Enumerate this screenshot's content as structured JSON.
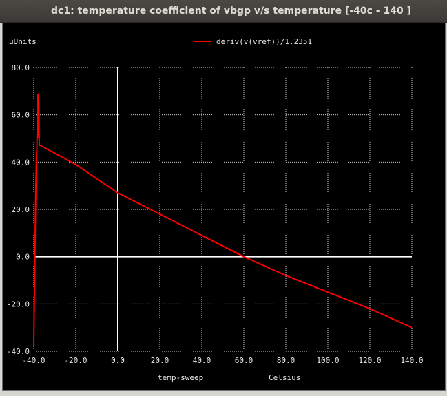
{
  "window": {
    "title": "dc1: temperature coefficient of vbgp v/s temperature [-40c - 140 ]"
  },
  "colors": {
    "background": "#000000",
    "grid": "#cfcfcf",
    "axis": "#ffffff",
    "trace": "#ff0000",
    "text": "#e8e8e8"
  },
  "chart_data": {
    "type": "line",
    "title": "",
    "ylabel": "uUnits",
    "xlabel": "temp-sweep",
    "xunit": "Celsius",
    "xlim": [
      -40,
      140
    ],
    "ylim": [
      -40,
      80
    ],
    "xticks": [
      -40,
      -20,
      0,
      20,
      40,
      60,
      80,
      100,
      120,
      140
    ],
    "yticks": [
      -40,
      -20,
      0,
      20,
      40,
      60,
      80
    ],
    "xtick_labels": [
      "-40.0",
      "-20.0",
      "0.0",
      "20.0",
      "40.0",
      "60.0",
      "80.0",
      "100.0",
      "120.0",
      "140.0"
    ],
    "ytick_labels": [
      "-40.0",
      "-20.0",
      "0.0",
      "20.0",
      "40.0",
      "60.0",
      "80.0"
    ],
    "grid": true,
    "legend_position": "top-center",
    "series": [
      {
        "name": "deriv(v(vref))/1.2351",
        "color": "#ff0000",
        "x": [
          -40,
          -39.6,
          -39.3,
          -39.0,
          -38.7,
          -38.5,
          -38.3,
          -38.0,
          -37.9,
          -37.6,
          -37.4,
          -37.2,
          -37.0,
          -36.8,
          -20,
          0,
          20,
          40,
          60,
          80,
          100,
          120,
          140
        ],
        "y": [
          -38,
          -10,
          10,
          30,
          43,
          46,
          58,
          69,
          50,
          66,
          48,
          47,
          47,
          47,
          39,
          27,
          18,
          9,
          0,
          -8,
          -15,
          -22,
          -30
        ]
      }
    ]
  }
}
